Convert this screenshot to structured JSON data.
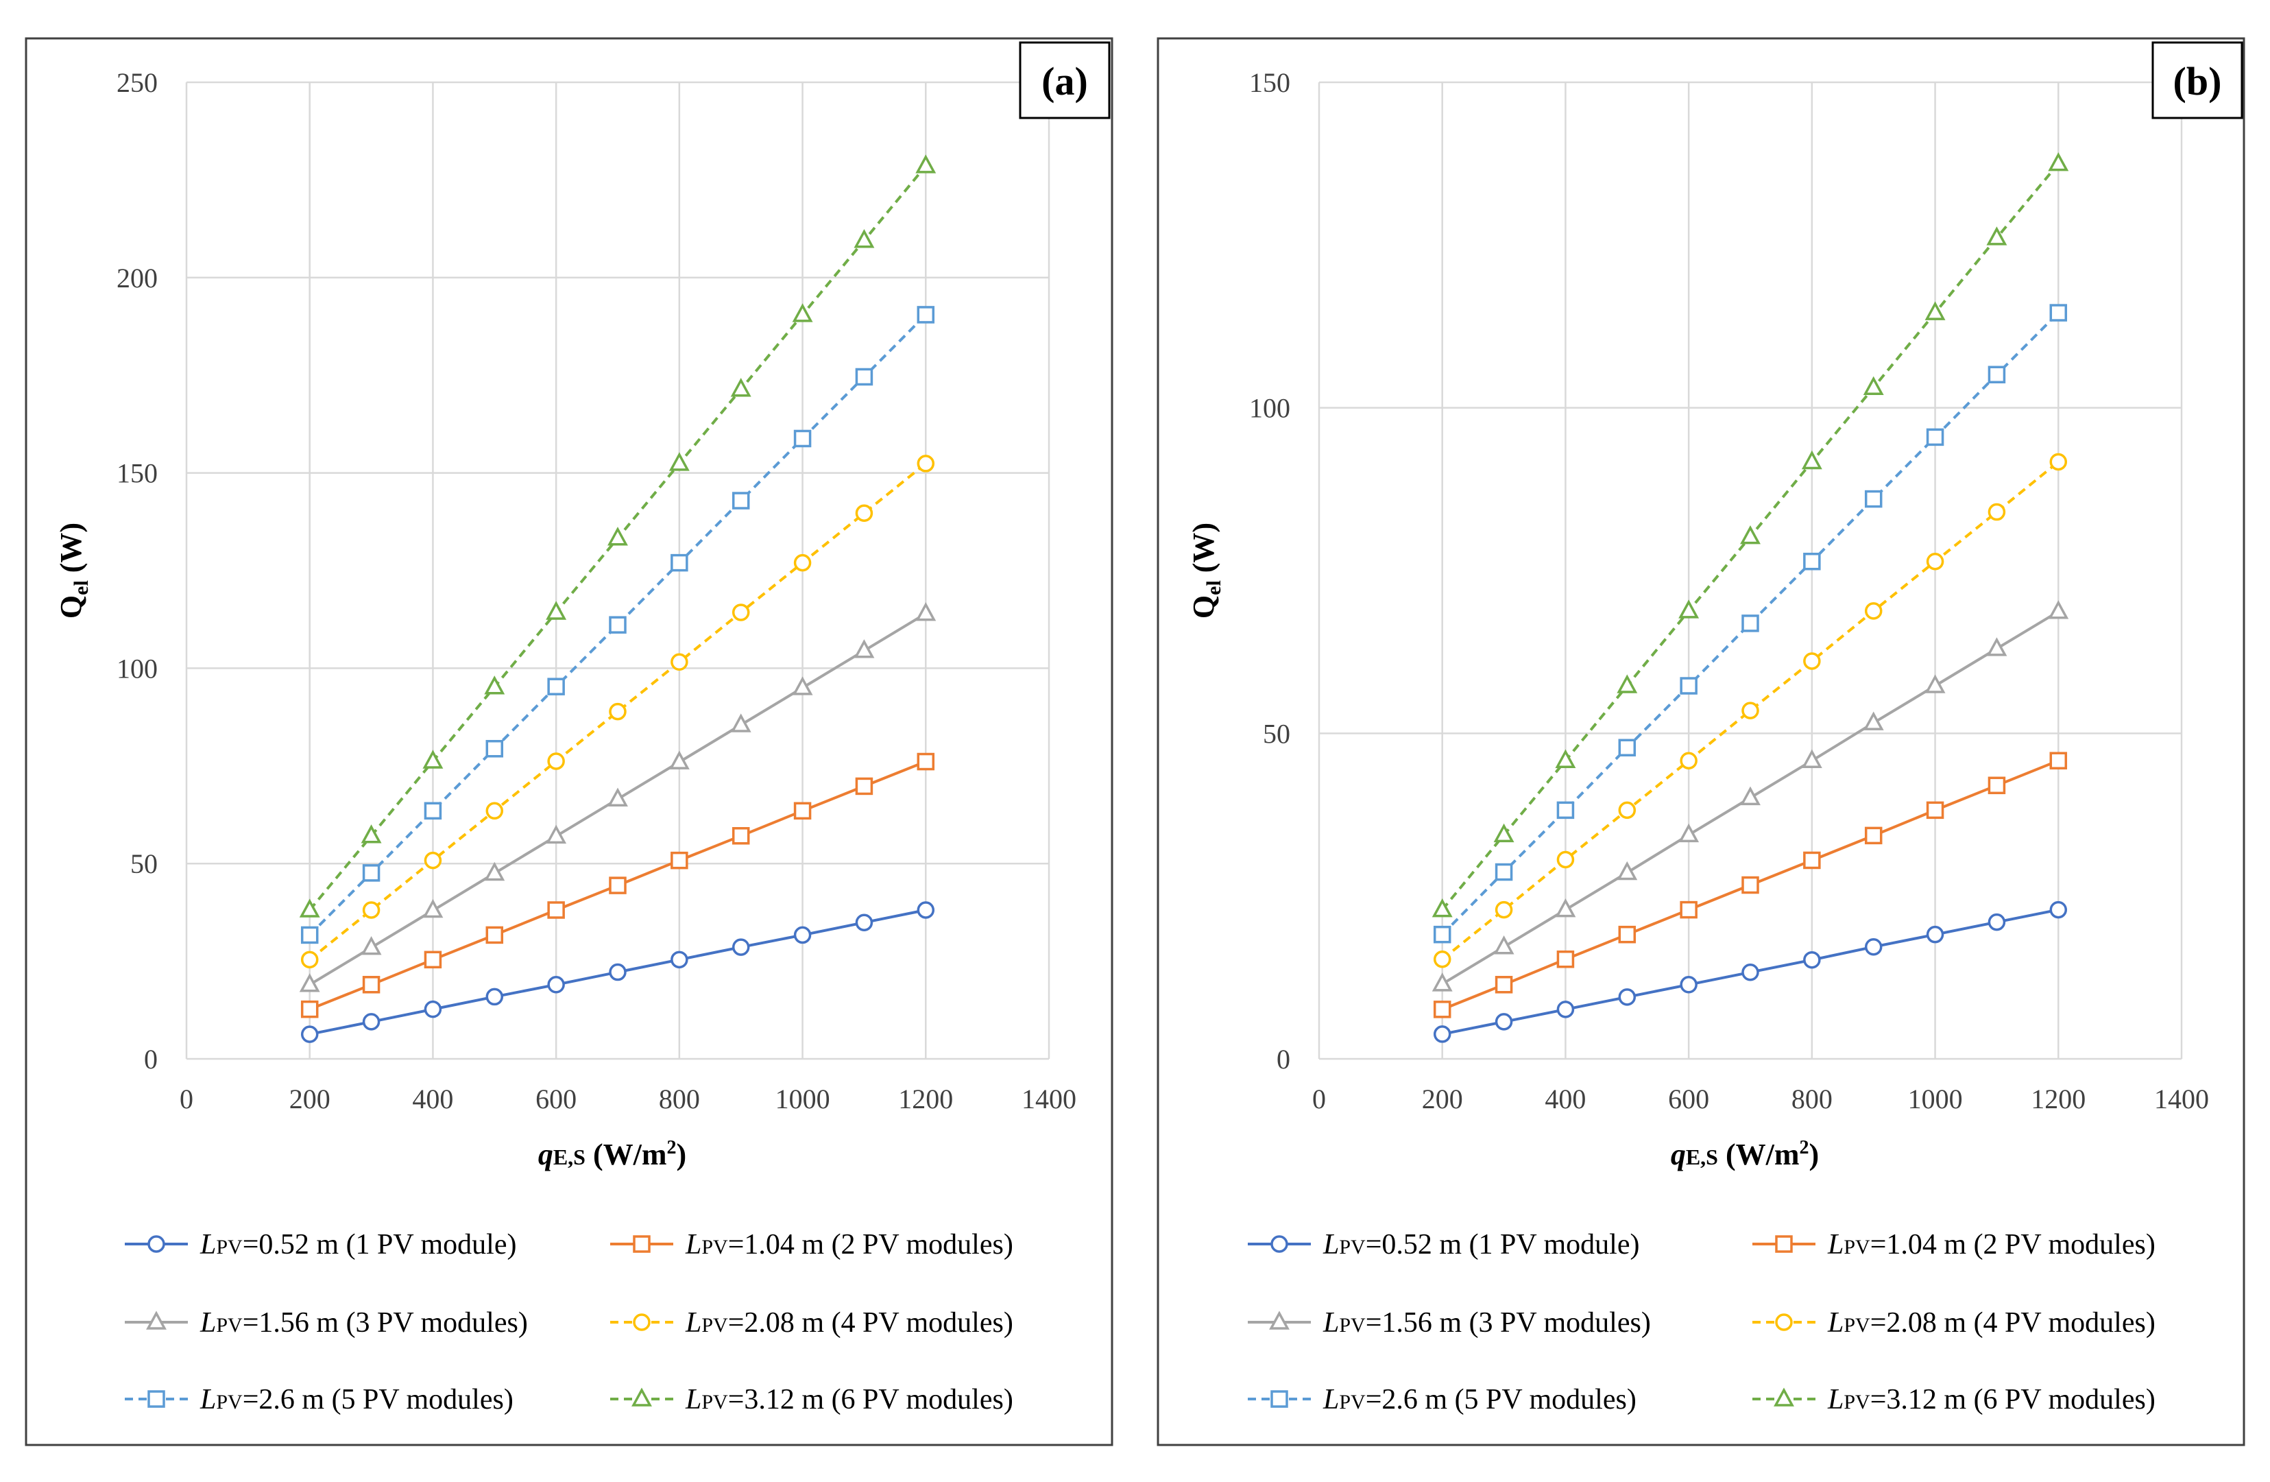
{
  "chart_data": [
    {
      "type": "line",
      "panel_label": "(a)",
      "ylabel": "Q",
      "ylabel_sub": "el",
      "ylabel_unit": " (W)",
      "xlabel_main": "q",
      "xlabel_sub": "E,S",
      "xlabel_unit": " (W/m",
      "xlabel_sup": "2",
      "xlabel_close": ")",
      "xlim": [
        0,
        1400
      ],
      "ylim": [
        0,
        250
      ],
      "x_ticks": [
        0,
        200,
        400,
        600,
        800,
        1000,
        1200,
        1400
      ],
      "y_ticks": [
        0,
        50,
        100,
        150,
        200,
        250
      ],
      "grid": true,
      "legend_position": "bottom",
      "x": [
        200,
        300,
        400,
        500,
        600,
        700,
        800,
        900,
        1000,
        1100,
        1200
      ],
      "series": [
        {
          "name_main": "L",
          "name_sub": "PV",
          "name_rest": "=0.52 m (1 PV module)",
          "color": "#4472C4",
          "marker": "circle",
          "dashed": false,
          "values": [
            6.3,
            9.5,
            12.7,
            15.9,
            19.0,
            22.2,
            25.4,
            28.6,
            31.7,
            34.9,
            38.1
          ]
        },
        {
          "name_main": "L",
          "name_sub": "PV",
          "name_rest": "=1.04 m (2 PV modules)",
          "color": "#ED7D31",
          "marker": "square",
          "dashed": false,
          "values": [
            12.7,
            19.0,
            25.4,
            31.7,
            38.1,
            44.4,
            50.8,
            57.1,
            63.5,
            69.8,
            76.1
          ]
        },
        {
          "name_main": "L",
          "name_sub": "PV",
          "name_rest": "=1.56 m (3 PV modules)",
          "color": "#A5A5A5",
          "marker": "triangle",
          "dashed": false,
          "values": [
            19.0,
            28.5,
            38.0,
            47.5,
            57.0,
            66.5,
            76.0,
            85.5,
            95.0,
            104.5,
            114.0
          ]
        },
        {
          "name_main": "L",
          "name_sub": "PV",
          "name_rest": "=2.08 m (4 PV modules)",
          "color": "#FFC000",
          "marker": "circle",
          "dashed": true,
          "values": [
            25.4,
            38.1,
            50.8,
            63.5,
            76.2,
            88.9,
            101.6,
            114.3,
            127.0,
            139.7,
            152.4
          ]
        },
        {
          "name_main": "L",
          "name_sub": "PV",
          "name_rest": "=2.6 m (5 PV modules)",
          "color": "#5B9BD5",
          "marker": "square",
          "dashed": true,
          "values": [
            31.7,
            47.6,
            63.5,
            79.4,
            95.3,
            111.1,
            127.0,
            142.9,
            158.8,
            174.6,
            190.5
          ]
        },
        {
          "name_main": "L",
          "name_sub": "PV",
          "name_rest": "=3.12 m (6 PV modules)",
          "color": "#70AD47",
          "marker": "triangle",
          "dashed": true,
          "values": [
            38.1,
            57.1,
            76.2,
            95.2,
            114.3,
            133.3,
            152.4,
            171.4,
            190.5,
            209.5,
            228.6
          ]
        }
      ]
    },
    {
      "type": "line",
      "panel_label": "(b)",
      "ylabel": "Q",
      "ylabel_sub": "el",
      "ylabel_unit": " (W)",
      "xlabel_main": "q",
      "xlabel_sub": "E,S",
      "xlabel_unit": " (W/m",
      "xlabel_sup": "2",
      "xlabel_close": ")",
      "xlim": [
        0,
        1400
      ],
      "ylim": [
        0,
        150
      ],
      "x_ticks": [
        0,
        200,
        400,
        600,
        800,
        1000,
        1200,
        1400
      ],
      "y_ticks": [
        0,
        50,
        100,
        150
      ],
      "grid": true,
      "legend_position": "bottom",
      "x": [
        200,
        300,
        400,
        500,
        600,
        700,
        800,
        900,
        1000,
        1100,
        1200
      ],
      "series": [
        {
          "name_main": "L",
          "name_sub": "PV",
          "name_rest": "=0.52 m (1 PV module)",
          "color": "#4472C4",
          "marker": "circle",
          "dashed": false,
          "values": [
            3.8,
            5.7,
            7.6,
            9.5,
            11.4,
            13.3,
            15.2,
            17.2,
            19.1,
            21.0,
            22.9
          ]
        },
        {
          "name_main": "L",
          "name_sub": "PV",
          "name_rest": "=1.04 m (2 PV modules)",
          "color": "#ED7D31",
          "marker": "square",
          "dashed": false,
          "values": [
            7.6,
            11.4,
            15.3,
            19.1,
            22.9,
            26.7,
            30.5,
            34.3,
            38.2,
            42.0,
            45.8
          ]
        },
        {
          "name_main": "L",
          "name_sub": "PV",
          "name_rest": "=1.56 m (3 PV modules)",
          "color": "#A5A5A5",
          "marker": "triangle",
          "dashed": false,
          "values": [
            11.5,
            17.2,
            22.9,
            28.6,
            34.4,
            40.1,
            45.8,
            51.6,
            57.3,
            63.0,
            68.7
          ]
        },
        {
          "name_main": "L",
          "name_sub": "PV",
          "name_rest": "=2.08 m (4 PV modules)",
          "color": "#FFC000",
          "marker": "circle",
          "dashed": true,
          "values": [
            15.3,
            22.9,
            30.6,
            38.2,
            45.8,
            53.5,
            61.1,
            68.8,
            76.4,
            84.0,
            91.7
          ]
        },
        {
          "name_main": "L",
          "name_sub": "PV",
          "name_rest": "=2.6 m (5 PV modules)",
          "color": "#5B9BD5",
          "marker": "square",
          "dashed": true,
          "values": [
            19.1,
            28.7,
            38.2,
            47.8,
            57.3,
            66.9,
            76.4,
            86.0,
            95.5,
            105.1,
            114.6
          ]
        },
        {
          "name_main": "L",
          "name_sub": "PV",
          "name_rest": "=3.12 m (6 PV modules)",
          "color": "#70AD47",
          "marker": "triangle",
          "dashed": true,
          "values": [
            22.9,
            34.4,
            45.8,
            57.3,
            68.8,
            80.2,
            91.7,
            103.1,
            114.6,
            126.1,
            137.5
          ]
        }
      ]
    }
  ]
}
